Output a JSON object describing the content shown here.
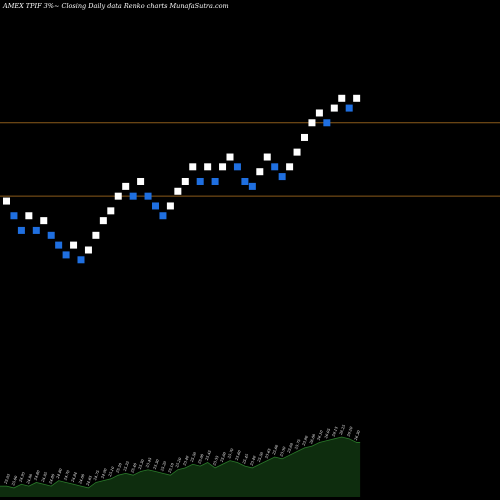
{
  "chart_data": {
    "type": "renko",
    "title": "AMEX  TPIF  3%~  Closing Daily data  Renko  charts MunafaSutra.com",
    "colors": {
      "background": "#000000",
      "up_brick": "#ffffff",
      "down_brick": "#1f6fe0",
      "reference_line": "#8a5a1a",
      "volume_fill": "#0e2d0e",
      "volume_line": "#2a7a2a",
      "label": "#ffffff"
    },
    "y_range": [
      22.4,
      27.1
    ],
    "reference_lines": [
      26.05,
      25.3
    ],
    "bricks": [
      {
        "dir": "up",
        "value": 25.25
      },
      {
        "dir": "down",
        "value": 25.1
      },
      {
        "dir": "down",
        "value": 24.95
      },
      {
        "dir": "up",
        "value": 25.1
      },
      {
        "dir": "down",
        "value": 24.95
      },
      {
        "dir": "up",
        "value": 25.05
      },
      {
        "dir": "down",
        "value": 24.9
      },
      {
        "dir": "down",
        "value": 24.8
      },
      {
        "dir": "down",
        "value": 24.7
      },
      {
        "dir": "up",
        "value": 24.8
      },
      {
        "dir": "down",
        "value": 24.65
      },
      {
        "dir": "up",
        "value": 24.75
      },
      {
        "dir": "up",
        "value": 24.9
      },
      {
        "dir": "up",
        "value": 25.05
      },
      {
        "dir": "up",
        "value": 25.15
      },
      {
        "dir": "up",
        "value": 25.3
      },
      {
        "dir": "up",
        "value": 25.4
      },
      {
        "dir": "down",
        "value": 25.3
      },
      {
        "dir": "up",
        "value": 25.45
      },
      {
        "dir": "down",
        "value": 25.3
      },
      {
        "dir": "down",
        "value": 25.2
      },
      {
        "dir": "down",
        "value": 25.1
      },
      {
        "dir": "up",
        "value": 25.2
      },
      {
        "dir": "up",
        "value": 25.35
      },
      {
        "dir": "up",
        "value": 25.45
      },
      {
        "dir": "up",
        "value": 25.6
      },
      {
        "dir": "down",
        "value": 25.45
      },
      {
        "dir": "up",
        "value": 25.6
      },
      {
        "dir": "down",
        "value": 25.45
      },
      {
        "dir": "up",
        "value": 25.6
      },
      {
        "dir": "up",
        "value": 25.7
      },
      {
        "dir": "down",
        "value": 25.6
      },
      {
        "dir": "down",
        "value": 25.45
      },
      {
        "dir": "down",
        "value": 25.4
      },
      {
        "dir": "up",
        "value": 25.55
      },
      {
        "dir": "up",
        "value": 25.7
      },
      {
        "dir": "down",
        "value": 25.6
      },
      {
        "dir": "down",
        "value": 25.5
      },
      {
        "dir": "up",
        "value": 25.6
      },
      {
        "dir": "up",
        "value": 25.75
      },
      {
        "dir": "up",
        "value": 25.9
      },
      {
        "dir": "up",
        "value": 26.05
      },
      {
        "dir": "up",
        "value": 26.15
      },
      {
        "dir": "down",
        "value": 26.05
      },
      {
        "dir": "up",
        "value": 26.2
      },
      {
        "dir": "up",
        "value": 26.3
      },
      {
        "dir": "down",
        "value": 26.2
      },
      {
        "dir": "up",
        "value": 26.3
      }
    ],
    "volume": [
      6,
      5,
      7,
      6,
      8,
      7,
      6,
      9,
      8,
      7,
      6,
      5,
      8,
      9,
      10,
      12,
      13,
      12,
      14,
      15,
      14,
      13,
      12,
      15,
      16,
      18,
      17,
      19,
      16,
      18,
      20,
      19,
      17,
      16,
      18,
      20,
      22,
      21,
      23,
      25,
      27,
      28,
      30,
      31,
      32,
      33,
      32,
      30
    ],
    "volume_labels": [
      "25.05",
      "25.00",
      "24.95",
      "24.90",
      "24.80",
      "24.95",
      "24.89",
      "24.80",
      "24.70",
      "24.84",
      "24.60",
      "24.65",
      "24.75",
      "24.90",
      "25.10",
      "25.20",
      "25.35",
      "25.40",
      "25.30",
      "25.45",
      "25.30",
      "25.20",
      "25.10",
      "25.20",
      "25.40",
      "25.50",
      "25.60",
      "25.45",
      "25.55",
      "25.60",
      "25.70",
      "25.60",
      "25.45",
      "25.40",
      "25.50",
      "25.65",
      "25.60",
      "25.50",
      "25.60",
      "25.75",
      "25.90",
      "26.00",
      "26.10",
      "26.05",
      "26.15",
      "26.25",
      "26.20",
      "26.30"
    ]
  }
}
